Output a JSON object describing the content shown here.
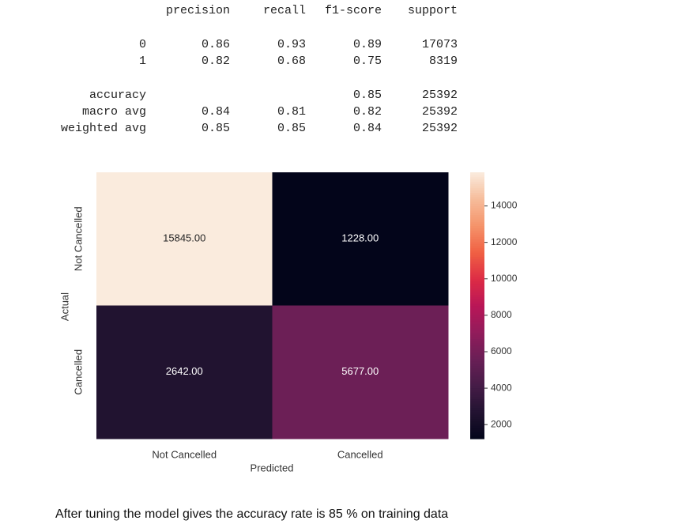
{
  "report": {
    "columns": [
      "precision",
      "recall",
      "f1-score",
      "support"
    ],
    "rows": [
      {
        "label": "0",
        "values": [
          0.86,
          0.93,
          0.89,
          17073
        ]
      },
      {
        "label": "1",
        "values": [
          0.82,
          0.68,
          0.75,
          8319
        ]
      },
      {
        "label": "accuracy",
        "values": [
          null,
          null,
          0.85,
          25392
        ]
      },
      {
        "label": "macro avg",
        "values": [
          0.84,
          0.81,
          0.82,
          25392
        ]
      },
      {
        "label": "weighted avg",
        "values": [
          0.85,
          0.85,
          0.84,
          25392
        ]
      }
    ]
  },
  "chart_data": {
    "type": "heatmap",
    "xlabel": "Predicted",
    "ylabel": "Actual",
    "x_categories": [
      "Not Cancelled",
      "Cancelled"
    ],
    "y_categories": [
      "Not Cancelled",
      "Cancelled"
    ],
    "values": [
      [
        15845,
        1228
      ],
      [
        2642,
        5677
      ]
    ],
    "value_labels": [
      [
        "15845.00",
        "1228.00"
      ],
      [
        "2642.00",
        "5677.00"
      ]
    ],
    "colormap": "rocket",
    "clim": [
      1228,
      15845
    ],
    "cticks": [
      2000,
      4000,
      6000,
      8000,
      10000,
      12000,
      14000
    ]
  },
  "caption": "After tuning the model gives the accuracy rate is 85 % on training data"
}
